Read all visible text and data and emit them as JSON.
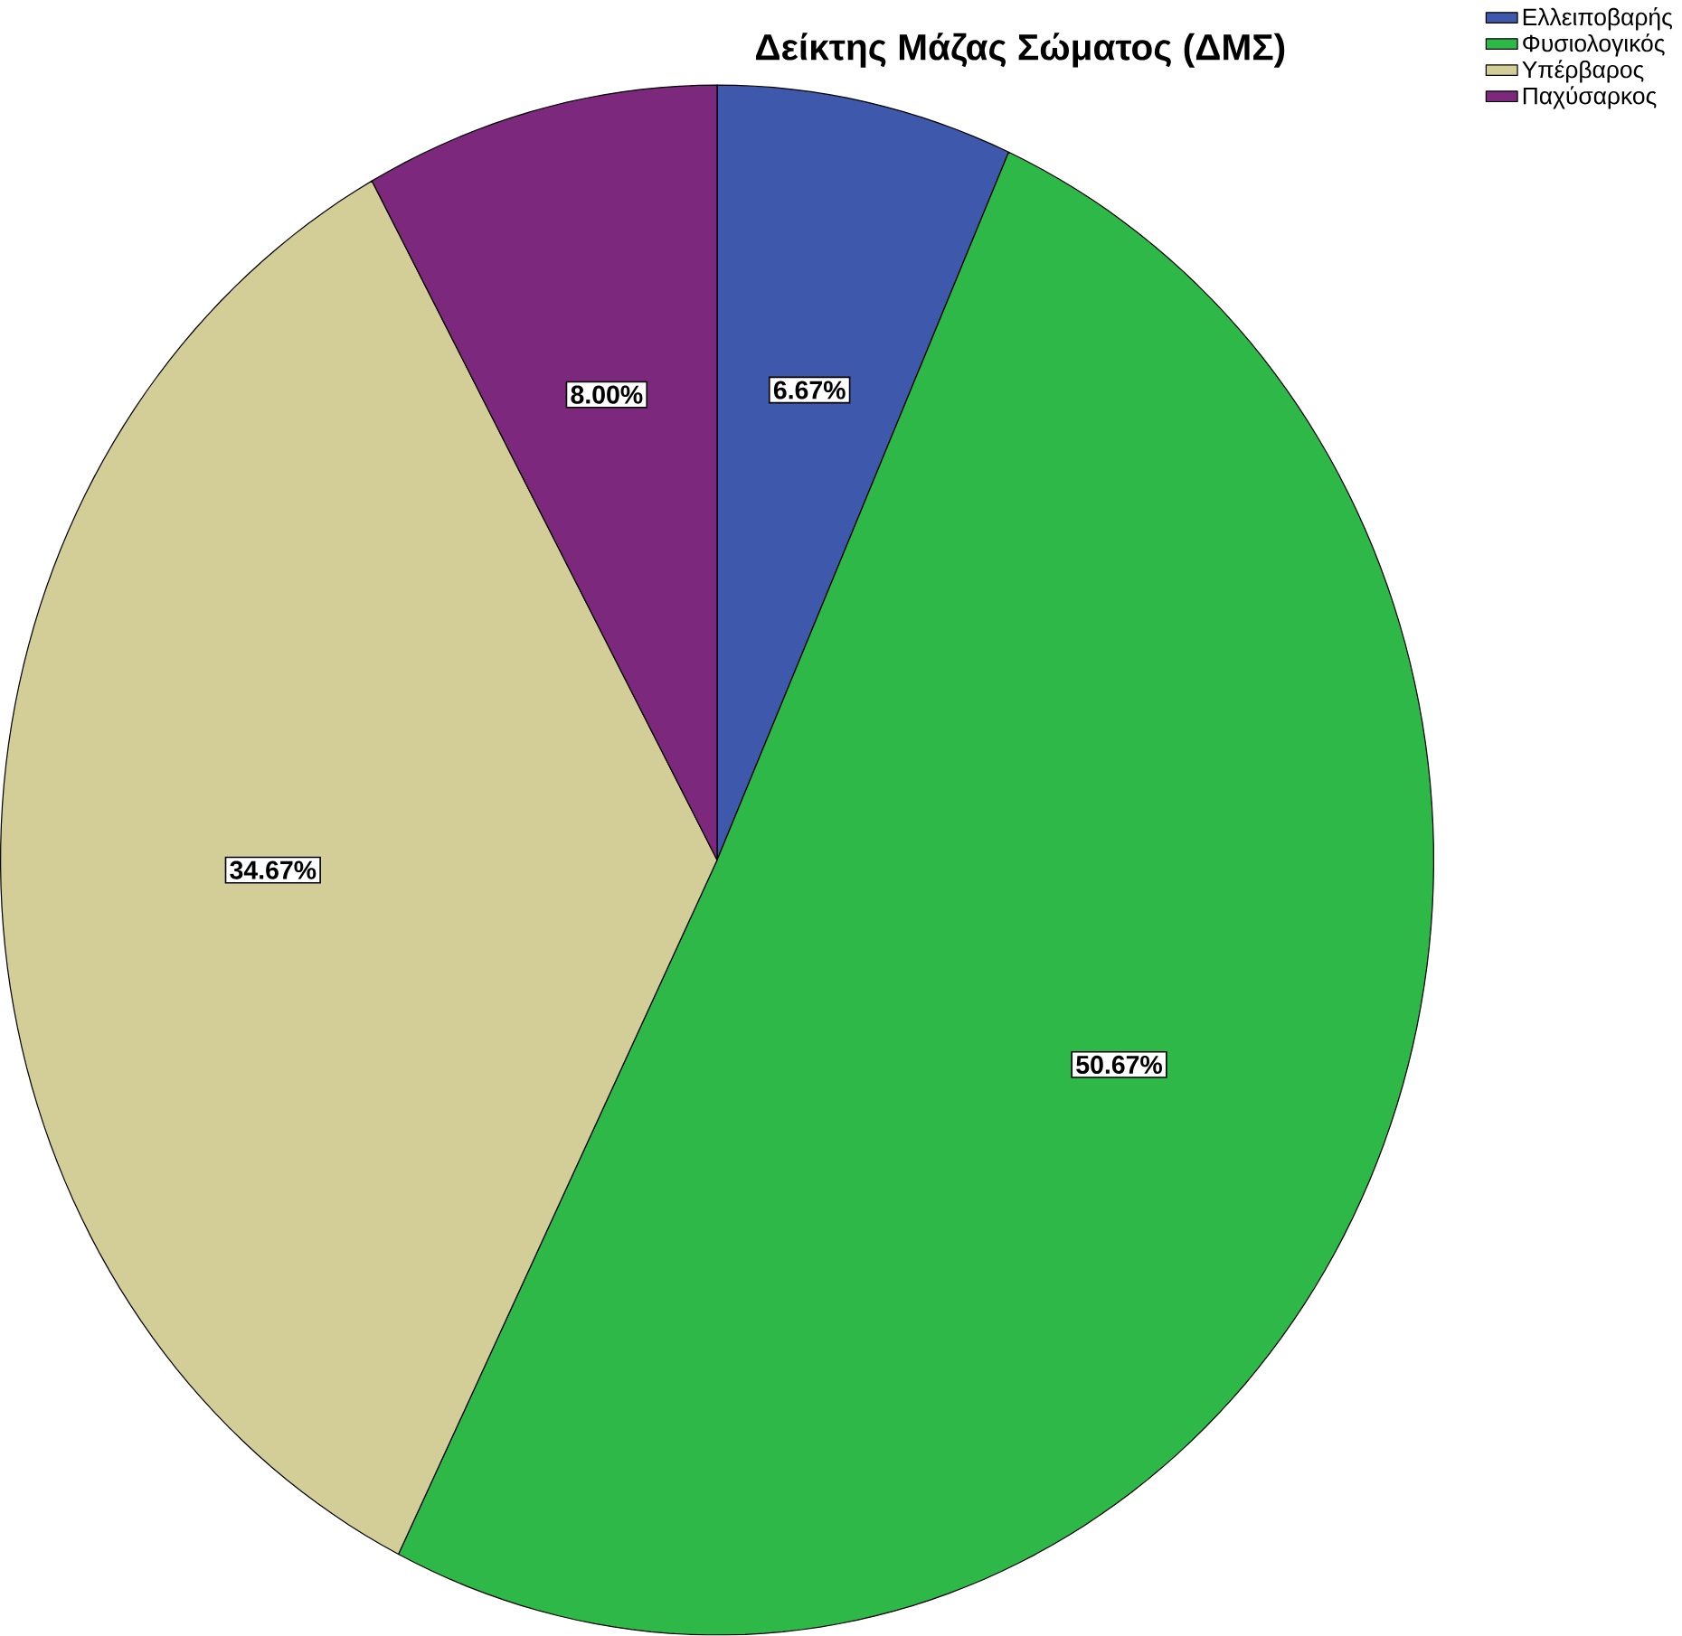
{
  "chart_data": {
    "type": "pie",
    "title": "Δείκτης Μάζας Σώματος (ΔΜΣ)",
    "categories": [
      "Ελλειποβαρής",
      "Φυσιολογικός",
      "Υπέρβαρος",
      "Παχύσαρκος"
    ],
    "values": [
      6.67,
      50.67,
      34.67,
      8.0
    ],
    "colors": [
      "#3e58ac",
      "#2eb848",
      "#d3ce97",
      "#7c287d"
    ],
    "value_labels": [
      "6.67%",
      "50.67%",
      "34.67%",
      "8.00%"
    ],
    "legend": "top right"
  }
}
